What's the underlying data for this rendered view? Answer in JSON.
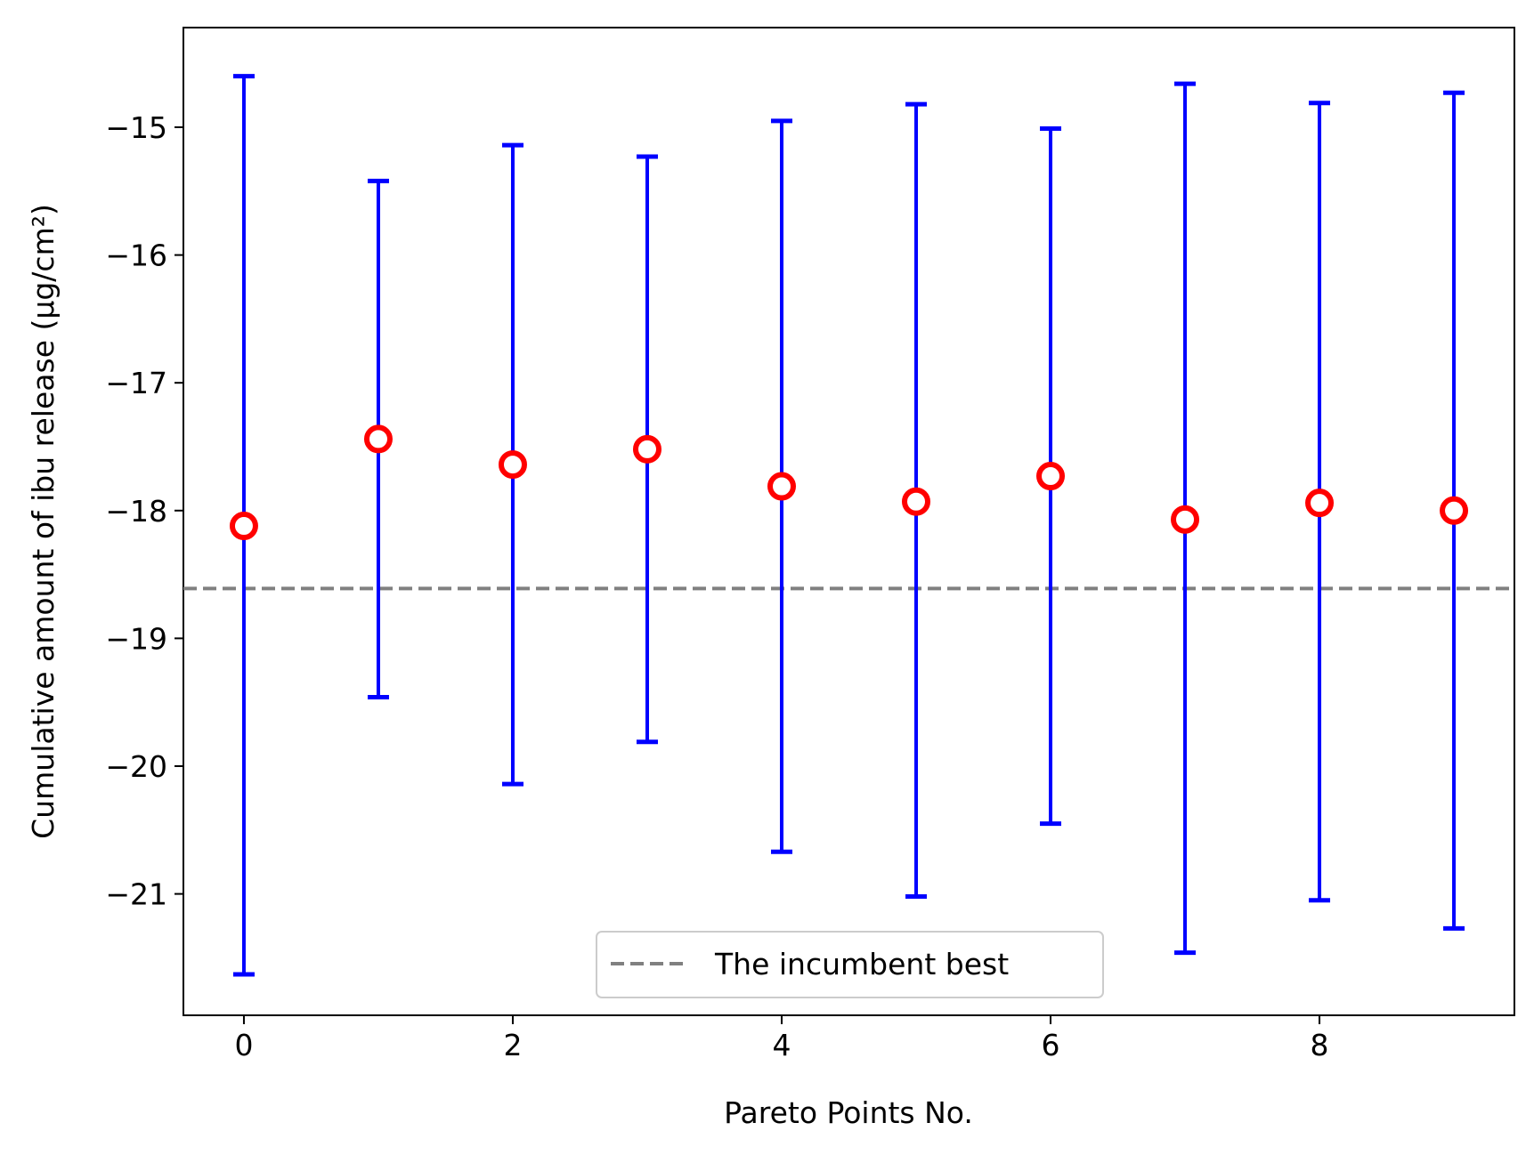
{
  "chart_data": {
    "type": "scatter",
    "title": "",
    "xlabel": "Pareto Points No.",
    "ylabel": "Cumulative amount of ibu release (µg/cm²)",
    "xlim": [
      -0.45,
      9.45
    ],
    "ylim": [
      -21.95,
      -14.22
    ],
    "xticks": [
      0,
      2,
      4,
      6,
      8
    ],
    "xtick_labels": [
      "0",
      "2",
      "4",
      "6",
      "8"
    ],
    "yticks": [
      -21,
      -20,
      -19,
      -18,
      -17,
      -16,
      -15
    ],
    "ytick_labels": [
      "−21",
      "−20",
      "−19",
      "−18",
      "−17",
      "−16",
      "−15"
    ],
    "grid": false,
    "legend_position": "bottom-center",
    "series": [
      {
        "marker": "open-circle",
        "marker_edge_color": "#ff0000",
        "marker_face_color": "#ffffff",
        "errorbar_color": "#0000ff",
        "x": [
          0,
          1,
          2,
          3,
          4,
          5,
          6,
          7,
          8,
          9
        ],
        "y": [
          -18.12,
          -17.44,
          -17.64,
          -17.52,
          -17.81,
          -17.93,
          -17.73,
          -18.07,
          -17.94,
          -18.0
        ],
        "y_upper": [
          -14.6,
          -15.42,
          -15.14,
          -15.23,
          -14.95,
          -14.82,
          -15.01,
          -14.66,
          -14.81,
          -14.73
        ],
        "y_lower": [
          -21.63,
          -19.46,
          -20.14,
          -19.81,
          -20.67,
          -21.02,
          -20.45,
          -21.46,
          -21.05,
          -21.27
        ]
      }
    ],
    "reference_lines": [
      {
        "label": "The incumbent best",
        "y": -18.61,
        "color": "#808080",
        "style": "dashed"
      }
    ]
  }
}
